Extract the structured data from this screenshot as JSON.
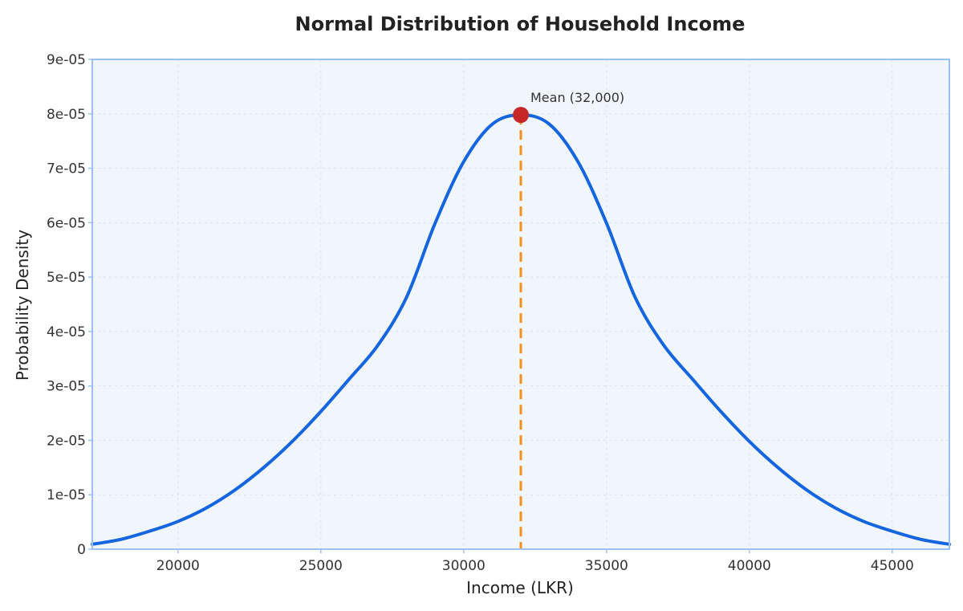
{
  "chart_data": {
    "type": "line",
    "title": "Normal Distribution of Household Income",
    "xlabel": "Income (LKR)",
    "ylabel": "Probability Density",
    "xlim": [
      17000,
      47000
    ],
    "ylim": [
      0,
      9e-05
    ],
    "x_ticks": [
      20000,
      25000,
      30000,
      35000,
      40000,
      45000
    ],
    "x_tick_labels": [
      "20000",
      "25000",
      "30000",
      "35000",
      "40000",
      "45000"
    ],
    "y_ticks": [
      0,
      1e-05,
      2e-05,
      3e-05,
      4e-05,
      5e-05,
      6e-05,
      7e-05,
      8e-05,
      9e-05
    ],
    "y_tick_labels": [
      "0",
      "1e-05",
      "2e-05",
      "3e-05",
      "4e-05",
      "5e-05",
      "6e-05",
      "7e-05",
      "8e-05",
      "9e-05"
    ],
    "grid": true,
    "series": [
      {
        "x": [
          17000,
          18000,
          19000,
          20000,
          21000,
          22000,
          23000,
          24000,
          25000,
          26000,
          27000,
          28000,
          29000,
          30000,
          31000,
          32000,
          33000,
          34000,
          35000,
          36000,
          37000,
          38000,
          39000,
          40000,
          41000,
          42000,
          43000,
          44000,
          45000,
          46000,
          47000
        ],
        "y": [
          9e-07,
          1.8e-06,
          3.3e-06,
          5.1e-06,
          7.6e-06,
          1.09e-05,
          1.5e-05,
          1.98e-05,
          2.53e-05,
          3.13e-05,
          3.75e-05,
          4.63e-05,
          5.99e-05,
          7.12e-05,
          7.81e-05,
          7.98e-05,
          7.81e-05,
          7.12e-05,
          5.99e-05,
          4.63e-05,
          3.75e-05,
          3.13e-05,
          2.53e-05,
          1.98e-05,
          1.5e-05,
          1.09e-05,
          7.6e-06,
          5.1e-06,
          3.3e-06,
          1.8e-06,
          9e-07
        ],
        "color": "#1565e0"
      }
    ],
    "mean": {
      "x": 32000,
      "y": 7.98e-05,
      "label": "Mean (32,000)",
      "marker_color": "#c62828",
      "line_color": "#f5901e"
    },
    "plot_background": "#f1f6fd",
    "frame_color": "#9dbff0"
  }
}
